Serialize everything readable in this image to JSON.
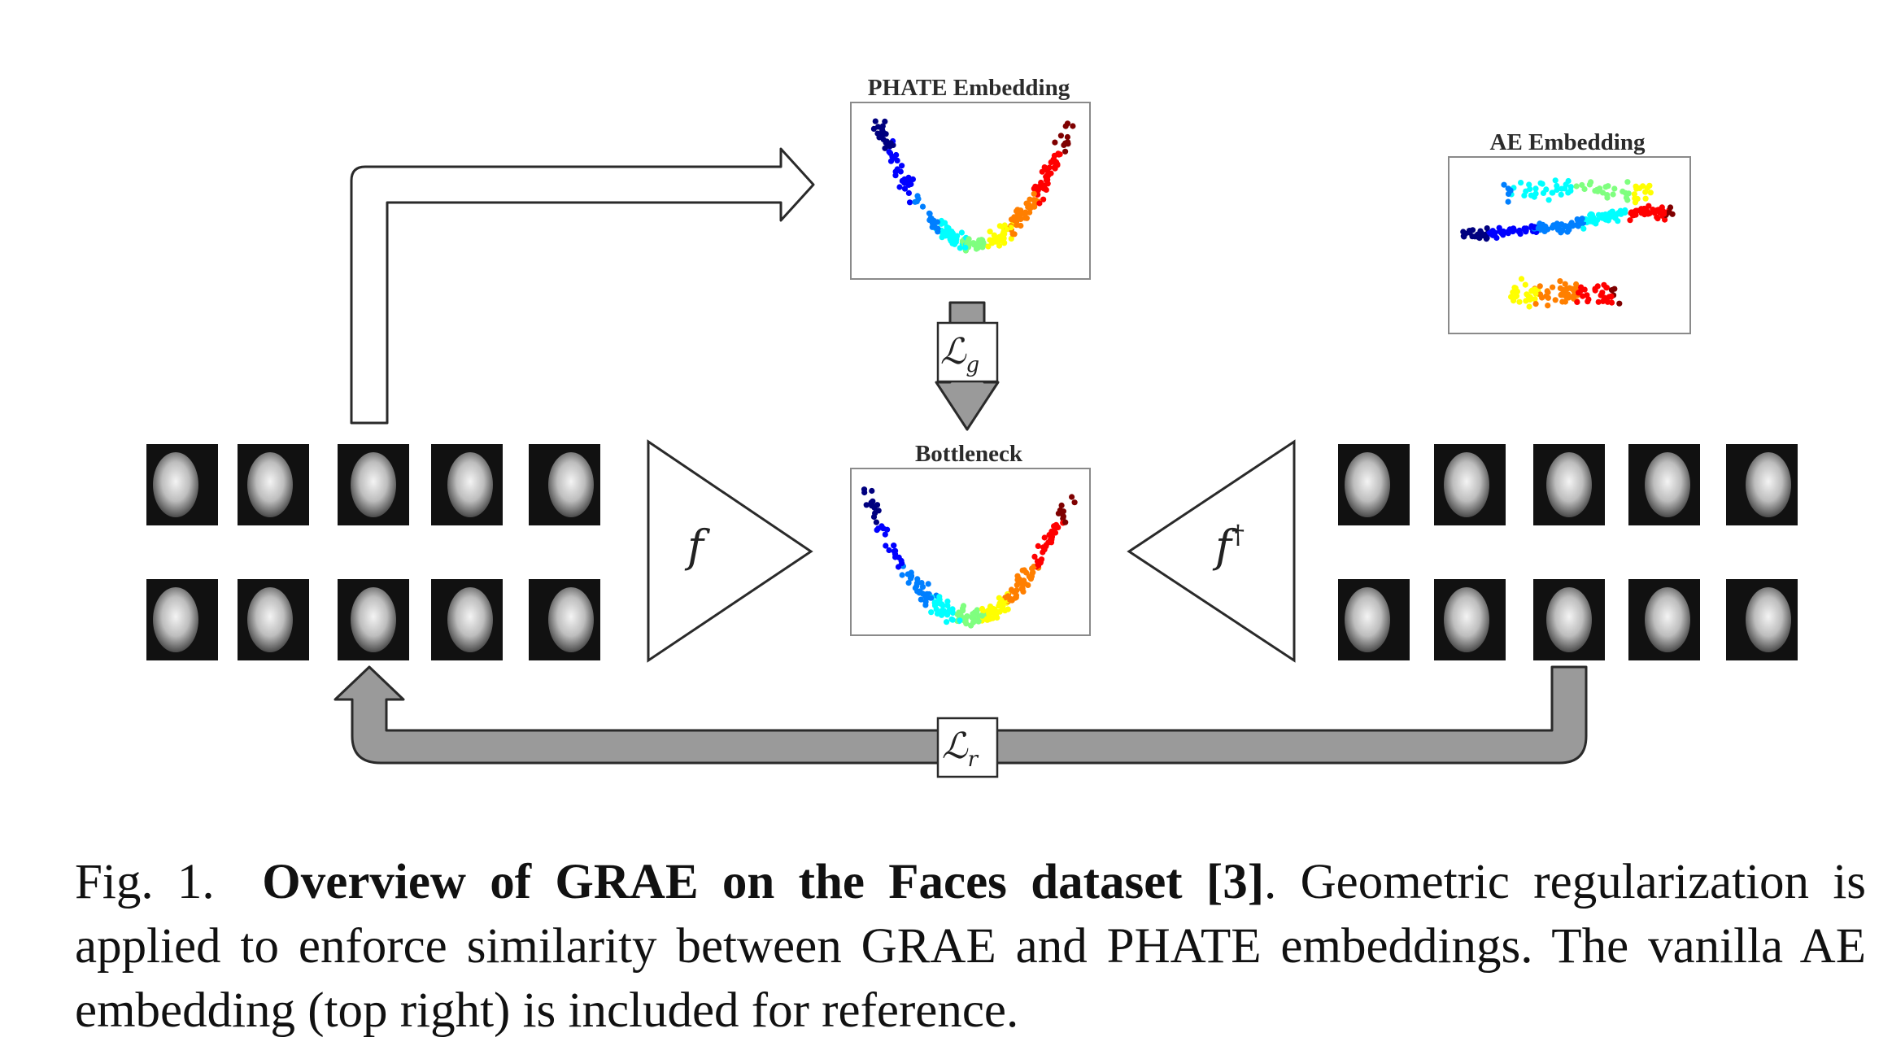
{
  "figure": {
    "panels": {
      "phate_title": "PHATE Embedding",
      "ae_title": "AE Embedding",
      "bottleneck_title": "Bottleneck"
    },
    "encoder_label": "f",
    "decoder_label": "f",
    "decoder_superscript": "†",
    "loss_geometric": {
      "symbol": "ℒ",
      "subscript": "g"
    },
    "loss_reconstruction": {
      "symbol": "ℒ",
      "subscript": "r"
    }
  },
  "caption": {
    "prefix": "Fig. 1.",
    "title": "Overview of GRAE on the Faces dataset [3]",
    "body": ". Geometric regularization is applied to enforce similarity between GRAE and PHATE embeddings. The vanilla AE embedding (top right) is included for reference."
  },
  "colors": {
    "scatter_scale": [
      "#00007f",
      "#0000ff",
      "#007fff",
      "#00ffff",
      "#7fff7f",
      "#ffff00",
      "#ff7f00",
      "#ff0000",
      "#7f0000"
    ],
    "arrow_fill_gray": "#9a9a9a",
    "outline": "#222222"
  }
}
